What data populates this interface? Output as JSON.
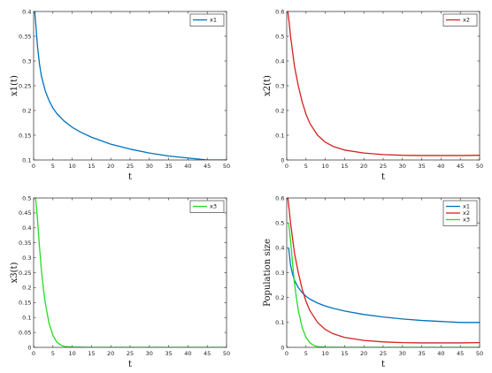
{
  "chart_data": [
    {
      "type": "line",
      "xlabel": "t",
      "ylabel": "x1(t)",
      "xlim": [
        0,
        50
      ],
      "ylim": [
        0.1,
        0.4
      ],
      "xticks": [
        "0",
        "5",
        "10",
        "15",
        "20",
        "25",
        "30",
        "35",
        "40",
        "45",
        "50"
      ],
      "yticks": [
        "0.1",
        "0.15",
        "0.2",
        "0.25",
        "0.3",
        "0.35",
        "0.4"
      ],
      "legend": "top-right",
      "series": [
        {
          "name": "x1",
          "color": "#0072BD",
          "x": [
            0.3,
            0.6,
            1,
            1.5,
            2,
            3,
            4,
            5,
            6,
            8,
            10,
            12,
            15,
            20,
            25,
            30,
            35,
            40,
            45,
            50
          ],
          "y": [
            0.4,
            0.37,
            0.33,
            0.295,
            0.27,
            0.24,
            0.22,
            0.205,
            0.194,
            0.178,
            0.166,
            0.157,
            0.146,
            0.132,
            0.122,
            0.114,
            0.108,
            0.104,
            0.1,
            0.1
          ]
        }
      ]
    },
    {
      "type": "line",
      "xlabel": "t",
      "ylabel": "x2(t)",
      "xlim": [
        0,
        50
      ],
      "ylim": [
        0,
        0.6
      ],
      "xticks": [
        "0",
        "5",
        "10",
        "15",
        "20",
        "25",
        "30",
        "35",
        "40",
        "45",
        "50"
      ],
      "yticks": [
        "0",
        "0.1",
        "0.2",
        "0.3",
        "0.4",
        "0.5",
        "0.6"
      ],
      "legend": "top-right",
      "series": [
        {
          "name": "x2",
          "color": "#D62020",
          "x": [
            0.3,
            0.6,
            1,
            1.5,
            2,
            3,
            4,
            5,
            6,
            8,
            10,
            12,
            15,
            20,
            25,
            30,
            35,
            40,
            45,
            50
          ],
          "y": [
            0.6,
            0.56,
            0.5,
            0.44,
            0.38,
            0.3,
            0.235,
            0.185,
            0.148,
            0.1,
            0.072,
            0.055,
            0.04,
            0.028,
            0.022,
            0.019,
            0.018,
            0.018,
            0.018,
            0.019
          ]
        }
      ]
    },
    {
      "type": "line",
      "xlabel": "t",
      "ylabel": "x3(t)",
      "xlim": [
        0,
        50
      ],
      "ylim": [
        0,
        0.5
      ],
      "xticks": [
        "0",
        "5",
        "10",
        "15",
        "20",
        "25",
        "30",
        "35",
        "40",
        "45",
        "50"
      ],
      "yticks": [
        "0",
        "0.05",
        "0.1",
        "0.15",
        "0.2",
        "0.25",
        "0.3",
        "0.35",
        "0.4",
        "0.45",
        "0.5"
      ],
      "legend": "top-right",
      "series": [
        {
          "name": "x3",
          "color": "#22DD22",
          "x": [
            0.5,
            1,
            1.5,
            2,
            2.5,
            3,
            4,
            5,
            6,
            7,
            8,
            10,
            15,
            20,
            30,
            40,
            50
          ],
          "y": [
            0.5,
            0.43,
            0.34,
            0.26,
            0.2,
            0.15,
            0.08,
            0.04,
            0.018,
            0.008,
            0.003,
            0.001,
            0,
            0,
            0,
            0,
            0
          ]
        }
      ]
    },
    {
      "type": "line",
      "xlabel": "t",
      "ylabel": "Population size",
      "xlim": [
        0,
        50
      ],
      "ylim": [
        0,
        0.6
      ],
      "xticks": [
        "0",
        "5",
        "10",
        "15",
        "20",
        "25",
        "30",
        "35",
        "40",
        "45",
        "50"
      ],
      "yticks": [
        "0",
        "0.1",
        "0.2",
        "0.3",
        "0.4",
        "0.5",
        "0.6"
      ],
      "legend": "top-right",
      "series": [
        {
          "name": "x1",
          "color": "#0072BD",
          "x": [
            0.5,
            1,
            1.5,
            2,
            3,
            4,
            5,
            6,
            8,
            10,
            12,
            15,
            20,
            25,
            30,
            35,
            40,
            45,
            50
          ],
          "y": [
            0.4,
            0.33,
            0.295,
            0.27,
            0.24,
            0.22,
            0.205,
            0.194,
            0.178,
            0.166,
            0.157,
            0.146,
            0.132,
            0.122,
            0.114,
            0.108,
            0.104,
            0.1,
            0.1
          ]
        },
        {
          "name": "x2",
          "color": "#D62020",
          "x": [
            0.3,
            0.6,
            1,
            1.5,
            2,
            3,
            4,
            5,
            6,
            8,
            10,
            12,
            15,
            20,
            25,
            30,
            35,
            40,
            45,
            50
          ],
          "y": [
            0.6,
            0.56,
            0.5,
            0.44,
            0.38,
            0.3,
            0.235,
            0.185,
            0.148,
            0.1,
            0.072,
            0.055,
            0.04,
            0.028,
            0.022,
            0.019,
            0.018,
            0.018,
            0.018,
            0.019
          ]
        },
        {
          "name": "x3",
          "color": "#22DD22",
          "x": [
            0.5,
            1,
            1.5,
            2,
            2.5,
            3,
            4,
            5,
            6,
            7,
            8,
            10,
            15,
            20,
            30,
            40,
            50
          ],
          "y": [
            0.5,
            0.43,
            0.34,
            0.26,
            0.2,
            0.15,
            0.08,
            0.04,
            0.018,
            0.008,
            0.003,
            0.001,
            0,
            0,
            0,
            0,
            0
          ]
        }
      ]
    }
  ]
}
